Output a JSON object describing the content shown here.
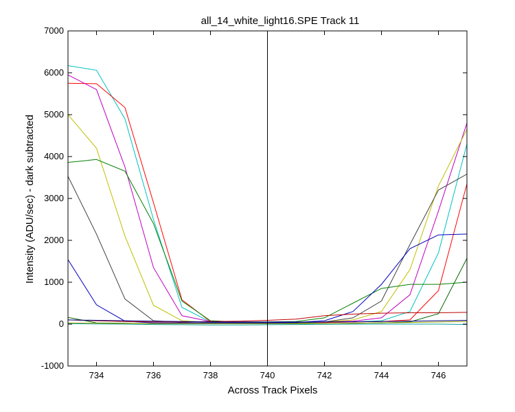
{
  "chart_data": {
    "type": "line",
    "title": "all_14_white_light16.SPE   Track 11",
    "xlabel": "Across Track Pixels",
    "ylabel": "Intensity (ADU/sec) - dark subtracted",
    "xlim": [
      733,
      747
    ],
    "ylim": [
      -1000,
      7000
    ],
    "x_ticks": [
      734,
      736,
      738,
      740,
      742,
      744,
      746
    ],
    "y_ticks": [
      -1000,
      0,
      1000,
      2000,
      3000,
      4000,
      5000,
      6000,
      7000
    ],
    "grid": false,
    "vertical_marker": {
      "x": 740,
      "color": "#000000"
    },
    "x": [
      733,
      734,
      735,
      736,
      737,
      738,
      739,
      740,
      741,
      742,
      743,
      744,
      745,
      746,
      747
    ],
    "series": [
      {
        "color": "#00bfbf",
        "values": [
          6170,
          6060,
          4900,
          2500,
          400,
          50,
          30,
          30,
          30,
          40,
          50,
          80,
          300,
          1700,
          4300
        ]
      },
      {
        "color": "#ff0000",
        "values": [
          5750,
          5740,
          5170,
          2900,
          580,
          60,
          40,
          40,
          40,
          40,
          50,
          60,
          100,
          800,
          3350
        ]
      },
      {
        "color": "#bf00bf",
        "values": [
          5950,
          5600,
          3750,
          1350,
          200,
          60,
          40,
          40,
          40,
          50,
          70,
          150,
          700,
          2700,
          4800
        ]
      },
      {
        "color": "#bfbf00",
        "values": [
          5000,
          4200,
          2100,
          450,
          80,
          40,
          30,
          30,
          40,
          50,
          100,
          300,
          1300,
          3300,
          4650
        ]
      },
      {
        "color": "#008000",
        "values": [
          3860,
          3930,
          3650,
          2400,
          550,
          80,
          50,
          50,
          60,
          150,
          500,
          850,
          950,
          950,
          1000
        ]
      },
      {
        "color": "#404040",
        "values": [
          3530,
          2150,
          600,
          80,
          40,
          30,
          30,
          30,
          30,
          50,
          150,
          550,
          1900,
          3200,
          3580
        ]
      },
      {
        "color": "#0000bf",
        "values": [
          1540,
          460,
          70,
          30,
          30,
          30,
          30,
          30,
          40,
          80,
          300,
          950,
          1800,
          2130,
          2150
        ]
      },
      {
        "color": "#bf0000",
        "values": [
          100,
          80,
          60,
          50,
          50,
          60,
          70,
          90,
          120,
          200,
          240,
          260,
          270,
          270,
          280
        ]
      },
      {
        "color": "#006400",
        "values": [
          160,
          30,
          20,
          10,
          10,
          10,
          10,
          10,
          10,
          15,
          20,
          30,
          50,
          250,
          1570
        ]
      },
      {
        "color": "#000080",
        "values": [
          100,
          90,
          80,
          70,
          60,
          50,
          50,
          50,
          50,
          50,
          55,
          60,
          70,
          80,
          90
        ]
      },
      {
        "color": "#00a0a0",
        "values": [
          10,
          5,
          0,
          -10,
          -15,
          -20,
          -20,
          -15,
          -10,
          -5,
          0,
          0,
          0,
          0,
          -10
        ]
      },
      {
        "color": "#a0a000",
        "values": [
          30,
          20,
          15,
          10,
          10,
          10,
          10,
          10,
          10,
          15,
          20,
          30,
          40,
          50,
          60
        ]
      }
    ]
  }
}
